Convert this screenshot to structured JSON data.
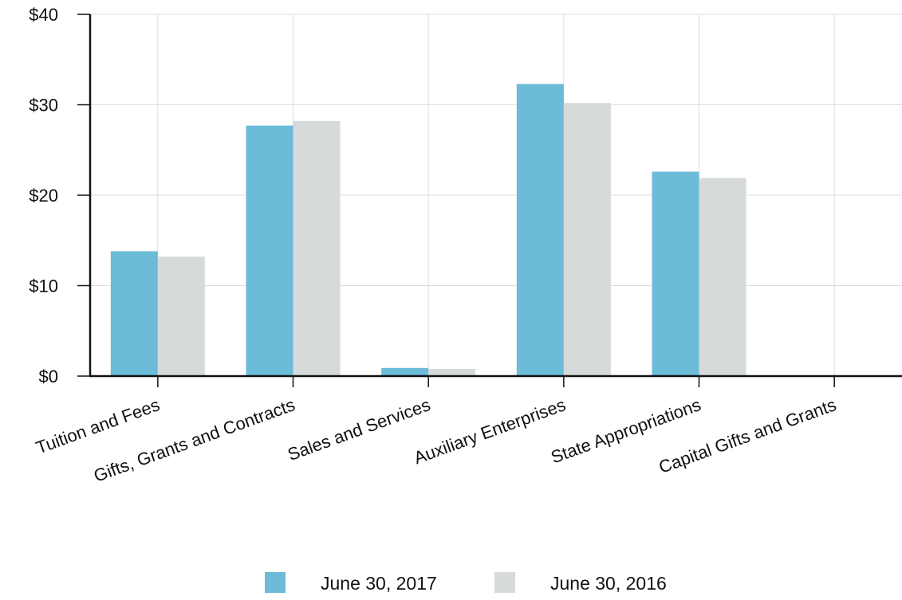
{
  "chart_data": {
    "type": "bar",
    "title": "",
    "xlabel": "",
    "ylabel": "",
    "categories": [
      "Tuition and Fees",
      "Gifts, Grants and Contracts",
      "Sales and Services",
      "Auxiliary Enterprises",
      "State Appropriations",
      "Capital Gifts and Grants"
    ],
    "series": [
      {
        "name": "June 30, 2017",
        "color": "#6bbbd9",
        "values": [
          13.8,
          27.7,
          0.9,
          32.3,
          22.6,
          0
        ]
      },
      {
        "name": "June 30, 2016",
        "color": "#d6dadb",
        "values": [
          13.2,
          28.2,
          0.8,
          30.2,
          21.9,
          0
        ]
      }
    ],
    "ylim": [
      0,
      40
    ],
    "yticks": [
      0,
      10,
      20,
      30,
      40
    ],
    "ytick_labels": [
      "$0",
      "$10",
      "$20",
      "$30",
      "$40"
    ],
    "grid": true,
    "legend_position": "bottom-center"
  }
}
